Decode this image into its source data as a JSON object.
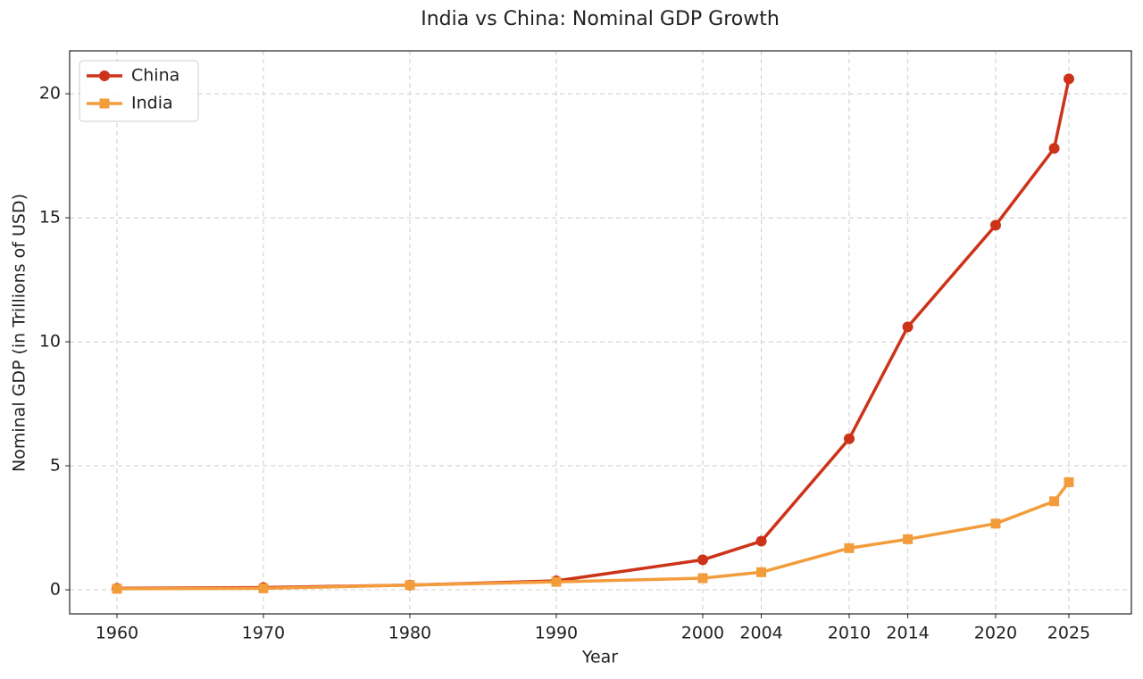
{
  "chart_data": {
    "type": "line",
    "title": "India vs China: Nominal GDP Growth",
    "x_label": "Year",
    "y_label": "Nominal GDP (in Trillions of USD)",
    "x": [
      1960,
      1970,
      1980,
      1990,
      2000,
      2004,
      2010,
      2014,
      2020,
      2024,
      2025
    ],
    "series": [
      {
        "name": "China",
        "color": "#cc3319",
        "marker": "circle",
        "values": [
          0.06,
          0.09,
          0.19,
          0.36,
          1.21,
          1.96,
          6.09,
          10.6,
          14.7,
          17.8,
          20.6
        ]
      },
      {
        "name": "India",
        "color": "#f39c3c",
        "marker": "square",
        "values": [
          0.04,
          0.06,
          0.19,
          0.32,
          0.47,
          0.71,
          1.68,
          2.04,
          2.67,
          3.57,
          4.34
        ]
      }
    ],
    "xlim": [
      1956.77,
      2029.27
    ],
    "ylim": [
      -0.97,
      21.73
    ],
    "xticks": [
      1960,
      1970,
      1980,
      1990,
      2000,
      2004,
      2010,
      2014,
      2020,
      2025
    ],
    "yticks": [
      0,
      5,
      10,
      15,
      20
    ],
    "grid": true,
    "legend": "upper-left"
  }
}
